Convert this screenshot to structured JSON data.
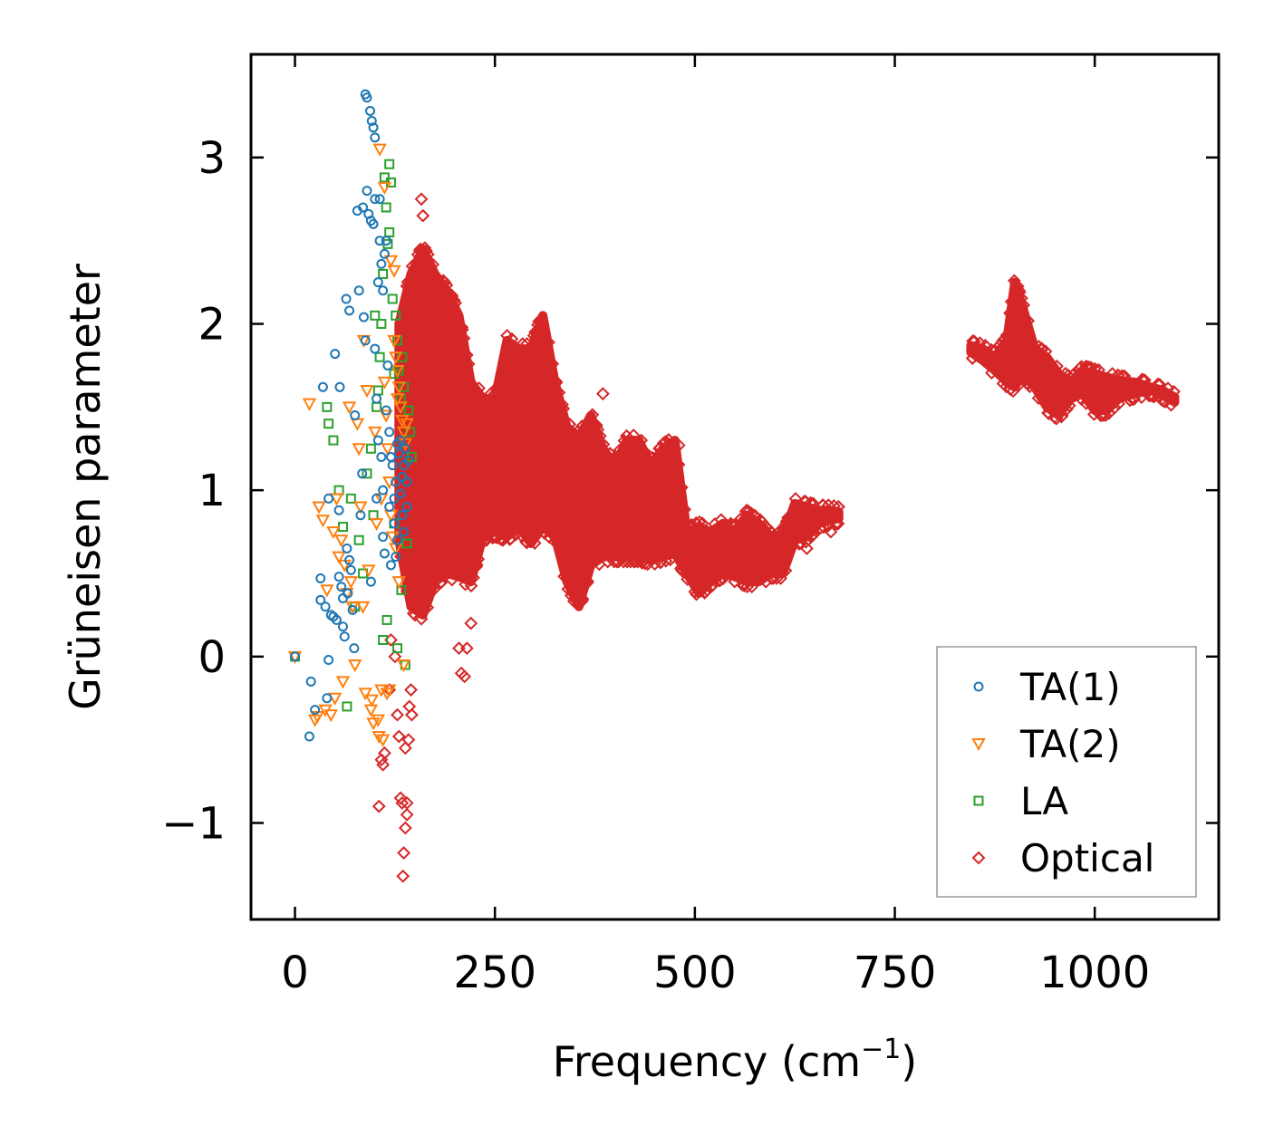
{
  "chart_data": {
    "type": "scatter",
    "title": "",
    "xlabel": "Frequency (cm",
    "xlabel_sup": "−1",
    "xlabel_close": ")",
    "ylabel": "Grüneisen parameter",
    "xlim": [
      -55,
      1155
    ],
    "ylim": [
      -1.58,
      3.62
    ],
    "x_ticks": [
      0,
      250,
      500,
      750,
      1000
    ],
    "x_tick_labels": [
      "0",
      "250",
      "500",
      "750",
      "1000"
    ],
    "y_ticks": [
      -1,
      0,
      1,
      2,
      3
    ],
    "y_tick_labels": [
      "−1",
      "0",
      "1",
      "2",
      "3"
    ],
    "grid": false,
    "legend_position": "bottom-right",
    "series": [
      {
        "name": "TA(1)",
        "marker": "circle",
        "color": "#1f77b4",
        "points": [
          [
            0,
            0
          ],
          [
            18,
            -0.48
          ],
          [
            20,
            -0.15
          ],
          [
            25,
            -0.32
          ],
          [
            32,
            0.47
          ],
          [
            32,
            0.34
          ],
          [
            35,
            1.62
          ],
          [
            38,
            0.3
          ],
          [
            40,
            -0.25
          ],
          [
            42,
            0.95
          ],
          [
            42,
            -0.02
          ],
          [
            45,
            0.25
          ],
          [
            48,
            0.24
          ],
          [
            50,
            1.82
          ],
          [
            52,
            0.22
          ],
          [
            55,
            0.48
          ],
          [
            55,
            0.88
          ],
          [
            56,
            1.62
          ],
          [
            58,
            0.42
          ],
          [
            60,
            0.35
          ],
          [
            60,
            0.18
          ],
          [
            62,
            0.12
          ],
          [
            64,
            2.15
          ],
          [
            65,
            0.65
          ],
          [
            66,
            0.38
          ],
          [
            68,
            2.08
          ],
          [
            68,
            0.58
          ],
          [
            70,
            0.52
          ],
          [
            72,
            0.28
          ],
          [
            74,
            0.05
          ],
          [
            75,
            1.45
          ],
          [
            78,
            2.68
          ],
          [
            80,
            2.2
          ],
          [
            82,
            0.85
          ],
          [
            84,
            1.1
          ],
          [
            85,
            2.7
          ],
          [
            86,
            2.04
          ],
          [
            88,
            1.9
          ],
          [
            88,
            3.38
          ],
          [
            90,
            3.36
          ],
          [
            90,
            2.8
          ],
          [
            92,
            2.66
          ],
          [
            94,
            3.28
          ],
          [
            95,
            0.45
          ],
          [
            95,
            2.62
          ],
          [
            96,
            3.22
          ],
          [
            98,
            3.18
          ],
          [
            98,
            2.6
          ],
          [
            100,
            3.12
          ],
          [
            100,
            2.75
          ],
          [
            100,
            1.85
          ],
          [
            102,
            1.55
          ],
          [
            102,
            0.95
          ],
          [
            104,
            2.25
          ],
          [
            104,
            1.3
          ],
          [
            106,
            2.75
          ],
          [
            106,
            2.5
          ],
          [
            108,
            2.36
          ],
          [
            108,
            1.2
          ],
          [
            110,
            2.2
          ],
          [
            110,
            1.0
          ],
          [
            110,
            0.72
          ],
          [
            112,
            2.42
          ],
          [
            112,
            0.62
          ],
          [
            114,
            2.5
          ],
          [
            114,
            1.48
          ],
          [
            116,
            1.75
          ],
          [
            118,
            1.35
          ],
          [
            118,
            0.9
          ],
          [
            120,
            1.2
          ],
          [
            120,
            0.55
          ],
          [
            122,
            1.15
          ],
          [
            124,
            0.95
          ],
          [
            124,
            0.8
          ],
          [
            126,
            1.05
          ],
          [
            126,
            0.6
          ],
          [
            128,
            1.28
          ],
          [
            128,
            0.7
          ],
          [
            130,
            1.22
          ],
          [
            132,
            0.98
          ],
          [
            132,
            1.3
          ],
          [
            134,
            1.08
          ],
          [
            134,
            0.85
          ],
          [
            136,
            1.15
          ],
          [
            136,
            0.75
          ],
          [
            138,
            1.25
          ],
          [
            140,
            1.05
          ],
          [
            140,
            0.9
          ],
          [
            142,
            1.18
          ]
        ]
      },
      {
        "name": "TA(2)",
        "marker": "triangle-down",
        "color": "#ff7f0e",
        "points": [
          [
            0,
            0
          ],
          [
            18,
            1.52
          ],
          [
            25,
            -0.38
          ],
          [
            28,
            -0.36
          ],
          [
            30,
            0.9
          ],
          [
            35,
            0.82
          ],
          [
            38,
            -0.32
          ],
          [
            40,
            0.4
          ],
          [
            45,
            -0.35
          ],
          [
            48,
            0.75
          ],
          [
            50,
            -0.25
          ],
          [
            52,
            0.95
          ],
          [
            55,
            0.6
          ],
          [
            58,
            0.7
          ],
          [
            60,
            -0.15
          ],
          [
            62,
            0.55
          ],
          [
            65,
            0.38
          ],
          [
            68,
            1.5
          ],
          [
            70,
            0.45
          ],
          [
            72,
            0.3
          ],
          [
            75,
            -0.05
          ],
          [
            78,
            1.4
          ],
          [
            80,
            1.25
          ],
          [
            82,
            0.9
          ],
          [
            85,
            0.3
          ],
          [
            86,
            1.9
          ],
          [
            88,
            -0.22
          ],
          [
            90,
            1.6
          ],
          [
            92,
            0.52
          ],
          [
            95,
            -0.32
          ],
          [
            96,
            -0.26
          ],
          [
            98,
            -0.4
          ],
          [
            100,
            1.35
          ],
          [
            102,
            0.8
          ],
          [
            104,
            -0.38
          ],
          [
            105,
            -0.48
          ],
          [
            106,
            3.05
          ],
          [
            108,
            0.95
          ],
          [
            108,
            -0.2
          ],
          [
            110,
            -0.5
          ],
          [
            112,
            2.82
          ],
          [
            112,
            1.65
          ],
          [
            114,
            1.45
          ],
          [
            115,
            -0.22
          ],
          [
            116,
            1.25
          ],
          [
            118,
            1.05
          ],
          [
            118,
            -0.2
          ],
          [
            120,
            2.38
          ],
          [
            120,
            0.85
          ],
          [
            122,
            0.72
          ],
          [
            124,
            2.32
          ],
          [
            124,
            1.9
          ],
          [
            126,
            1.8
          ],
          [
            126,
            0.65
          ],
          [
            128,
            1.72
          ],
          [
            128,
            1.55
          ],
          [
            130,
            1.62
          ],
          [
            130,
            0.45
          ],
          [
            132,
            1.5
          ],
          [
            134,
            1.42
          ],
          [
            136,
            1.35
          ],
          [
            136,
            -0.05
          ],
          [
            138,
            1.28
          ],
          [
            140,
            1.4
          ]
        ]
      },
      {
        "name": "LA",
        "marker": "square",
        "color": "#2ca02c",
        "points": [
          [
            0,
            0
          ],
          [
            40,
            1.5
          ],
          [
            42,
            1.4
          ],
          [
            48,
            1.3
          ],
          [
            55,
            1.0
          ],
          [
            60,
            0.78
          ],
          [
            65,
            -0.3
          ],
          [
            70,
            0.95
          ],
          [
            75,
            0.3
          ],
          [
            80,
            0.7
          ],
          [
            85,
            0.5
          ],
          [
            90,
            1.1
          ],
          [
            95,
            1.25
          ],
          [
            98,
            0.85
          ],
          [
            100,
            2.05
          ],
          [
            102,
            1.5
          ],
          [
            104,
            1.6
          ],
          [
            106,
            1.8
          ],
          [
            108,
            2.0
          ],
          [
            110,
            2.3
          ],
          [
            110,
            0.1
          ],
          [
            112,
            2.88
          ],
          [
            114,
            2.7
          ],
          [
            115,
            0.22
          ],
          [
            116,
            2.48
          ],
          [
            118,
            2.55
          ],
          [
            118,
            2.96
          ],
          [
            120,
            2.85
          ],
          [
            122,
            2.15
          ],
          [
            124,
            1.7
          ],
          [
            124,
            0.8
          ],
          [
            126,
            2.05
          ],
          [
            128,
            1.9
          ],
          [
            128,
            0.05
          ],
          [
            130,
            1.72
          ],
          [
            132,
            1.55
          ],
          [
            133,
            0.4
          ],
          [
            134,
            1.8
          ],
          [
            136,
            1.62
          ],
          [
            138,
            -0.05
          ],
          [
            140,
            0.68
          ],
          [
            142,
            1.48
          ],
          [
            144,
            1.35
          ],
          [
            146,
            1.2
          ]
        ]
      },
      {
        "name": "Optical",
        "marker": "diamond",
        "color": "#d62728",
        "points": []
      }
    ],
    "optical_region": {
      "note": "dense band of optical-mode points (lower/upper envelope in data units)",
      "main_band": {
        "x": [
          130,
          145,
          160,
          175,
          190,
          205,
          220,
          235,
          250,
          265,
          280,
          295,
          310,
          325,
          340,
          355,
          370,
          385,
          400,
          415,
          430,
          445,
          460,
          475,
          490,
          505,
          520,
          535,
          550,
          565,
          580,
          595,
          610,
          625,
          640,
          655,
          670,
          680
        ],
        "upper": [
          2.0,
          2.3,
          2.45,
          2.3,
          2.2,
          2.05,
          1.65,
          1.55,
          1.55,
          1.9,
          1.85,
          1.85,
          2.05,
          1.65,
          1.38,
          1.32,
          1.45,
          1.25,
          1.15,
          1.3,
          1.3,
          1.15,
          1.25,
          1.3,
          0.75,
          0.78,
          0.75,
          0.8,
          0.75,
          0.85,
          0.8,
          0.72,
          0.72,
          0.92,
          0.9,
          0.88,
          0.88,
          0.87
        ],
        "lower": [
          0.7,
          0.3,
          0.25,
          0.45,
          0.5,
          0.48,
          0.45,
          0.72,
          0.75,
          0.72,
          0.78,
          0.68,
          0.78,
          0.72,
          0.45,
          0.3,
          0.55,
          0.6,
          0.6,
          0.6,
          0.6,
          0.58,
          0.6,
          0.62,
          0.5,
          0.38,
          0.45,
          0.5,
          0.48,
          0.45,
          0.45,
          0.5,
          0.5,
          0.7,
          0.72,
          0.8,
          0.82,
          0.83
        ]
      },
      "high_band": {
        "x": [
          845,
          860,
          875,
          890,
          900,
          910,
          925,
          940,
          955,
          970,
          985,
          1000,
          1015,
          1030,
          1050,
          1070,
          1085,
          1100
        ],
        "upper": [
          1.87,
          1.85,
          1.8,
          1.9,
          2.25,
          2.1,
          1.85,
          1.8,
          1.7,
          1.65,
          1.72,
          1.7,
          1.68,
          1.66,
          1.65,
          1.62,
          1.6,
          1.56
        ],
        "lower": [
          1.83,
          1.78,
          1.72,
          1.65,
          1.62,
          1.7,
          1.62,
          1.5,
          1.45,
          1.55,
          1.58,
          1.48,
          1.48,
          1.55,
          1.58,
          1.6,
          1.57,
          1.53
        ]
      },
      "outliers": [
        [
          105,
          -0.9
        ],
        [
          108,
          -0.62
        ],
        [
          110,
          -0.65
        ],
        [
          112,
          -0.58
        ],
        [
          118,
          -0.2
        ],
        [
          120,
          0.1
        ],
        [
          125,
          0.0
        ],
        [
          128,
          -0.35
        ],
        [
          130,
          -0.48
        ],
        [
          132,
          -0.85
        ],
        [
          134,
          -0.88
        ],
        [
          135,
          -1.32
        ],
        [
          136,
          -1.18
        ],
        [
          138,
          -1.03
        ],
        [
          138,
          -0.55
        ],
        [
          140,
          -0.95
        ],
        [
          140,
          -0.88
        ],
        [
          142,
          -0.5
        ],
        [
          143,
          -0.3
        ],
        [
          145,
          -0.2
        ],
        [
          146,
          -0.35
        ],
        [
          150,
          0.25
        ],
        [
          158,
          2.75
        ],
        [
          160,
          2.65
        ],
        [
          205,
          0.05
        ],
        [
          208,
          -0.1
        ],
        [
          212,
          -0.12
        ],
        [
          215,
          0.05
        ],
        [
          220,
          0.2
        ],
        [
          270,
          1.55
        ],
        [
          290,
          1.45
        ],
        [
          480,
          1.27
        ],
        [
          545,
          0.8
        ],
        [
          640,
          0.65
        ],
        [
          670,
          0.75
        ],
        [
          385,
          1.58
        ],
        [
          445,
          0.68
        ]
      ]
    },
    "legend": [
      "TA(1)",
      "TA(2)",
      "LA",
      "Optical"
    ]
  }
}
